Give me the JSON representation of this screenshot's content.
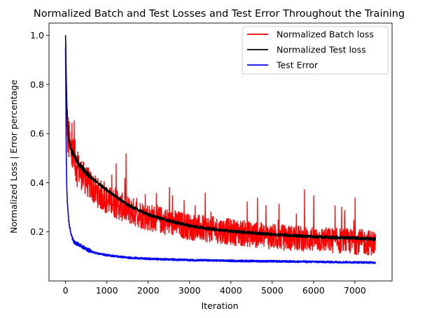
{
  "chart_data": {
    "type": "line",
    "title": "Normalized Batch and Test Losses and Test Error Throughout the Training",
    "xlabel": "Iteration",
    "ylabel": "Normalized Loss | Error percentage",
    "xlim": [
      -400,
      7900
    ],
    "ylim": [
      0.0,
      1.05
    ],
    "xticks": [
      0,
      1000,
      2000,
      3000,
      4000,
      5000,
      6000,
      7000
    ],
    "yticks": [
      0.2,
      0.4,
      0.6,
      0.8,
      1.0
    ],
    "xtick_labels": [
      "0",
      "1000",
      "2000",
      "3000",
      "4000",
      "5000",
      "6000",
      "7000"
    ],
    "ytick_labels": [
      "0.2",
      "0.4",
      "0.6",
      "0.8",
      "1.0"
    ],
    "grid": false,
    "legend_position": "top-right",
    "series": [
      {
        "name": "Normalized Batch loss",
        "color": "#ff0000",
        "noisy": true,
        "x": [
          0,
          20,
          50,
          100,
          150,
          200,
          300,
          400,
          500,
          700,
          1000,
          1500,
          2000,
          2500,
          3000,
          3500,
          4000,
          4500,
          5000,
          5500,
          6000,
          6500,
          7000,
          7500
        ],
        "y": [
          1.0,
          0.75,
          0.6,
          0.55,
          0.52,
          0.5,
          0.46,
          0.43,
          0.41,
          0.37,
          0.33,
          0.29,
          0.26,
          0.24,
          0.22,
          0.21,
          0.2,
          0.19,
          0.18,
          0.175,
          0.17,
          0.165,
          0.16,
          0.155
        ]
      },
      {
        "name": "Normalized Test loss",
        "color": "#000000",
        "noisy": false,
        "x": [
          0,
          15,
          30,
          50,
          75,
          100,
          150,
          200,
          300,
          400,
          500,
          700,
          1000,
          1500,
          2000,
          2500,
          3000,
          3500,
          4000,
          4500,
          5000,
          5500,
          6000,
          6500,
          7000,
          7500
        ],
        "y": [
          1.0,
          0.85,
          0.72,
          0.63,
          0.58,
          0.56,
          0.53,
          0.515,
          0.48,
          0.46,
          0.44,
          0.41,
          0.37,
          0.31,
          0.27,
          0.245,
          0.225,
          0.212,
          0.203,
          0.196,
          0.19,
          0.185,
          0.18,
          0.177,
          0.175,
          0.17
        ]
      },
      {
        "name": "Test Error",
        "color": "#0000ff",
        "noisy": false,
        "x": [
          0,
          15,
          30,
          50,
          75,
          100,
          150,
          200,
          300,
          400,
          500,
          700,
          1000,
          1500,
          2000,
          2500,
          3000,
          4000,
          5000,
          6000,
          7000,
          7500
        ],
        "y": [
          0.95,
          0.55,
          0.38,
          0.3,
          0.25,
          0.22,
          0.18,
          0.16,
          0.15,
          0.14,
          0.13,
          0.115,
          0.105,
          0.095,
          0.09,
          0.088,
          0.085,
          0.082,
          0.08,
          0.078,
          0.076,
          0.075
        ]
      }
    ]
  }
}
